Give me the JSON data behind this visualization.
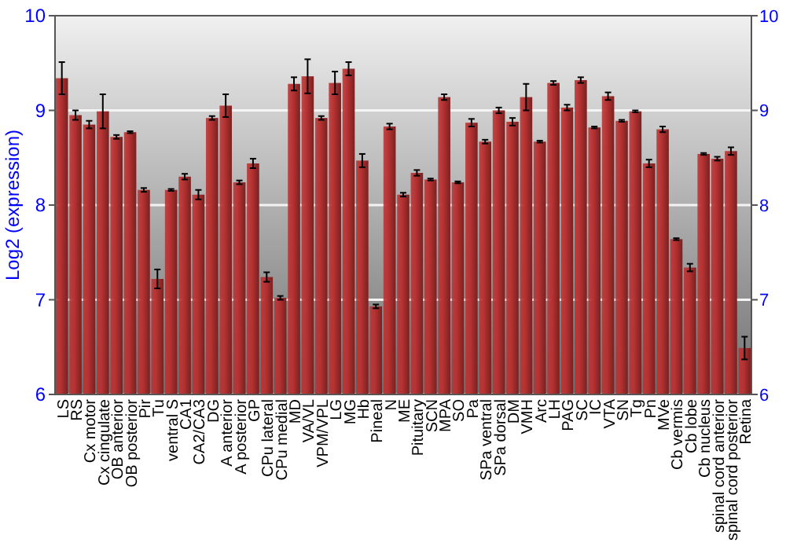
{
  "chart_data": {
    "type": "bar",
    "ylabel": "Log2 (expression)",
    "categories": [
      "LS",
      "RS",
      "Cx motor",
      "Cx cingulate",
      "OB anterior",
      "OB posterior",
      "Pir",
      "Tu",
      "ventral S",
      "CA1",
      "CA2/CA3",
      "DG",
      "A anterior",
      "A posterior",
      "GP",
      "CPu lateral",
      "CPu medial",
      "MD",
      "VA/VL",
      "VPM/VPL",
      "LG",
      "MG",
      "Hb",
      "Pineal",
      "N",
      "ME",
      "Pituitary",
      "SCN",
      "MPA",
      "SO",
      "Pa",
      "SPa ventral",
      "SPa dorsal",
      "DM",
      "VMH",
      "Arc",
      "LH",
      "PAG",
      "SC",
      "IC",
      "VTA",
      "SN",
      "Tg",
      "Pn",
      "MVe",
      "Cb vermis",
      "Cb lobe",
      "Cb nucleus",
      "spinal cord anterior",
      "spinal cord posterior",
      "Retina"
    ],
    "values": [
      9.34,
      8.95,
      8.85,
      8.99,
      8.72,
      8.77,
      8.16,
      7.22,
      8.16,
      8.3,
      8.11,
      8.92,
      9.05,
      8.24,
      8.44,
      7.24,
      7.02,
      9.28,
      9.36,
      8.92,
      9.29,
      9.44,
      8.47,
      6.93,
      8.83,
      8.11,
      8.34,
      8.27,
      9.14,
      8.24,
      8.87,
      8.67,
      9.0,
      8.88,
      9.14,
      8.67,
      9.29,
      9.03,
      9.32,
      8.82,
      9.15,
      8.89,
      8.99,
      8.44,
      8.8,
      7.64,
      7.34,
      8.54,
      8.49,
      8.57,
      6.49
    ],
    "errors": [
      0.17,
      0.05,
      0.04,
      0.18,
      0.02,
      0.01,
      0.02,
      0.1,
      0.01,
      0.03,
      0.05,
      0.02,
      0.12,
      0.02,
      0.05,
      0.05,
      0.02,
      0.07,
      0.18,
      0.02,
      0.12,
      0.07,
      0.07,
      0.02,
      0.03,
      0.02,
      0.03,
      0.01,
      0.03,
      0.01,
      0.04,
      0.02,
      0.03,
      0.04,
      0.14,
      0.01,
      0.02,
      0.03,
      0.03,
      0.01,
      0.04,
      0.01,
      0.01,
      0.04,
      0.03,
      0.01,
      0.04,
      0.01,
      0.02,
      0.04,
      0.12
    ],
    "color": "#b83232",
    "ylim": [
      6,
      10
    ],
    "yticks": [
      6,
      7,
      8,
      9,
      10
    ],
    "y2lim": [
      6,
      10
    ],
    "y2ticks": [
      6,
      7,
      8,
      9,
      10
    ],
    "grid": "y"
  }
}
